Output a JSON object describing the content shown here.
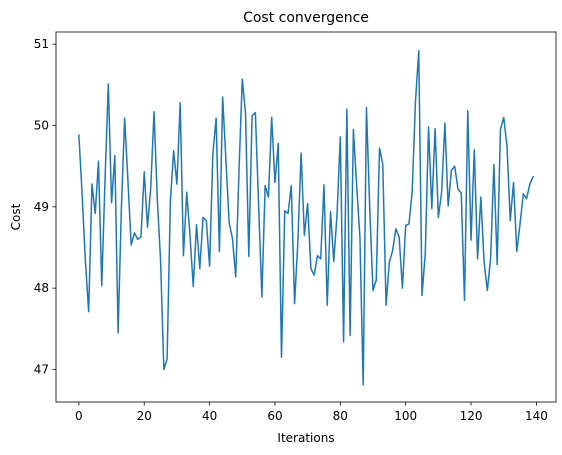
{
  "chart_data": {
    "type": "line",
    "title": "Cost convergence",
    "xlabel": "Iterations",
    "ylabel": "Cost",
    "xlim": [
      -7,
      146
    ],
    "ylim": [
      46.6,
      51.15
    ],
    "xticks": [
      0,
      20,
      40,
      60,
      80,
      100,
      120,
      140
    ],
    "yticks": [
      47,
      48,
      49,
      50,
      51
    ],
    "grid": false,
    "legend": "none",
    "series": [
      {
        "color": "#1f77b4",
        "x": [
          0,
          1,
          2,
          3,
          4,
          5,
          6,
          7,
          8,
          9,
          10,
          11,
          12,
          13,
          14,
          15,
          16,
          17,
          18,
          19,
          20,
          21,
          22,
          23,
          24,
          25,
          26,
          27,
          28,
          29,
          30,
          31,
          32,
          33,
          34,
          35,
          36,
          37,
          38,
          39,
          40,
          41,
          42,
          43,
          44,
          45,
          46,
          47,
          48,
          49,
          50,
          51,
          52,
          53,
          54,
          55,
          56,
          57,
          58,
          59,
          60,
          61,
          62,
          63,
          64,
          65,
          66,
          67,
          68,
          69,
          70,
          71,
          72,
          73,
          74,
          75,
          76,
          77,
          78,
          79,
          80,
          81,
          82,
          83,
          84,
          85,
          86,
          87,
          88,
          89,
          90,
          91,
          92,
          93,
          94,
          95,
          96,
          97,
          98,
          99,
          100,
          101,
          102,
          103,
          104,
          105,
          106,
          107,
          108,
          109,
          110,
          111,
          112,
          113,
          114,
          115,
          116,
          117,
          118,
          119,
          120,
          121,
          122,
          123,
          124,
          125,
          126,
          127,
          128,
          129,
          130,
          131,
          132,
          133,
          134,
          135,
          136,
          137,
          138,
          139
        ],
        "values": [
          49.88,
          49.15,
          48.33,
          47.71,
          49.28,
          48.92,
          49.56,
          48.03,
          49.33,
          50.51,
          49.05,
          49.63,
          47.45,
          48.98,
          50.09,
          49.33,
          48.53,
          48.68,
          48.6,
          48.63,
          49.43,
          48.75,
          49.24,
          50.17,
          49.09,
          48.34,
          47.0,
          47.13,
          49.07,
          49.69,
          49.28,
          50.28,
          48.4,
          49.18,
          48.65,
          48.02,
          48.78,
          48.24,
          48.87,
          48.83,
          48.27,
          49.65,
          50.09,
          48.45,
          50.35,
          49.57,
          48.8,
          48.61,
          48.14,
          49.45,
          50.57,
          50.15,
          48.39,
          50.12,
          50.16,
          49.02,
          47.89,
          49.26,
          49.12,
          50.1,
          49.3,
          49.78,
          47.15,
          48.95,
          48.92,
          49.26,
          47.81,
          48.56,
          49.66,
          48.65,
          49.04,
          48.24,
          48.16,
          48.4,
          48.36,
          49.27,
          47.79,
          48.94,
          48.33,
          48.91,
          49.86,
          47.34,
          50.2,
          47.42,
          49.95,
          49.26,
          48.63,
          46.81,
          50.22,
          48.98,
          47.97,
          48.1,
          49.72,
          49.52,
          47.79,
          48.32,
          48.46,
          48.73,
          48.63,
          48.0,
          48.77,
          48.79,
          49.19,
          50.3,
          50.92,
          47.91,
          48.43,
          49.98,
          48.98,
          49.96,
          48.87,
          49.18,
          50.03,
          49.01,
          49.45,
          49.5,
          49.22,
          49.17,
          47.85,
          50.18,
          48.59,
          49.7,
          48.36,
          49.12,
          48.32,
          47.97,
          48.37,
          49.52,
          48.29,
          49.95,
          50.1,
          49.75,
          48.83,
          49.3,
          48.45,
          48.79,
          49.16,
          49.1,
          49.28,
          49.37
        ]
      }
    ]
  }
}
